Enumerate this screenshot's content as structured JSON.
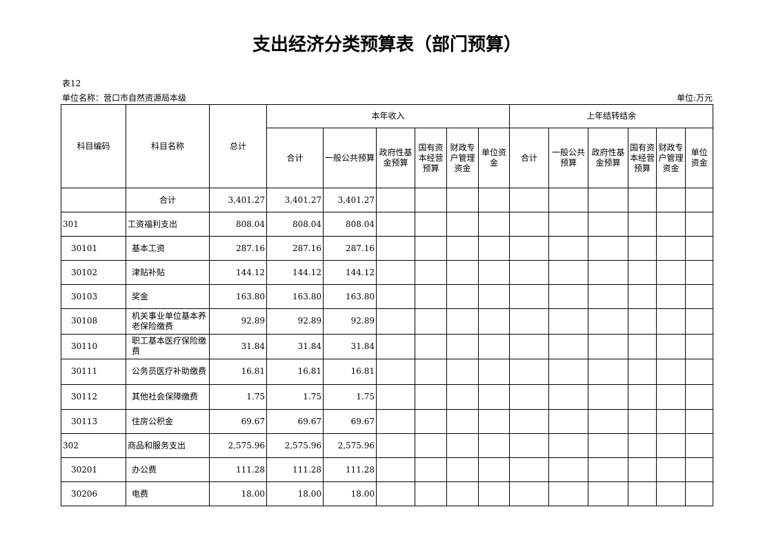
{
  "title": "支出经济分类预算表（部门预算）",
  "table_no": "表12",
  "unit_name": "单位名称：营口市自然资源局本级",
  "unit": "单位:万元",
  "headers": {
    "code": "科目编码",
    "name": "科目名称",
    "total": "总计",
    "current_year": "本年收入",
    "carryover": "上年结转结余",
    "current_cols": [
      "合计",
      "一般公共预算",
      "政府性基金预算",
      "国有资本经营预算",
      "财政专户管理资金",
      "单位资金"
    ],
    "carry_cols": [
      "合计",
      "一般公共预算",
      "政府性基金预算",
      "国有资本经营预算",
      "财政专户管理资金",
      "单位资金"
    ]
  },
  "rows": [
    {
      "code": "",
      "name": "合计",
      "total": "3,401.27",
      "cy_total": "3,401.27",
      "cy_general": "3,401.27"
    },
    {
      "code": "301",
      "name": "工资福利支出",
      "total": "808.04",
      "cy_total": "808.04",
      "cy_general": "808.04"
    },
    {
      "code": "30101",
      "name": "基本工资",
      "total": "287.16",
      "cy_total": "287.16",
      "cy_general": "287.16"
    },
    {
      "code": "30102",
      "name": "津贴补贴",
      "total": "144.12",
      "cy_total": "144.12",
      "cy_general": "144.12"
    },
    {
      "code": "30103",
      "name": "奖金",
      "total": "163.80",
      "cy_total": "163.80",
      "cy_general": "163.80"
    },
    {
      "code": "30108",
      "name": "机关事业单位基本养老保险缴费",
      "total": "92.89",
      "cy_total": "92.89",
      "cy_general": "92.89"
    },
    {
      "code": "30110",
      "name": "职工基本医疗保险缴费",
      "total": "31.84",
      "cy_total": "31.84",
      "cy_general": "31.84"
    },
    {
      "code": "30111",
      "name": "公务员医疗补助缴费",
      "total": "16.81",
      "cy_total": "16.81",
      "cy_general": "16.81"
    },
    {
      "code": "30112",
      "name": "其他社会保障缴费",
      "total": "1.75",
      "cy_total": "1.75",
      "cy_general": "1.75"
    },
    {
      "code": "30113",
      "name": "住房公积金",
      "total": "69.67",
      "cy_total": "69.67",
      "cy_general": "69.67"
    },
    {
      "code": "302",
      "name": "商品和服务支出",
      "total": "2,575.96",
      "cy_total": "2,575.96",
      "cy_general": "2,575.96"
    },
    {
      "code": "30201",
      "name": "办公费",
      "total": "111.28",
      "cy_total": "111.28",
      "cy_general": "111.28"
    },
    {
      "code": "30206",
      "name": "电费",
      "total": "18.00",
      "cy_total": "18.00",
      "cy_general": "18.00"
    }
  ]
}
